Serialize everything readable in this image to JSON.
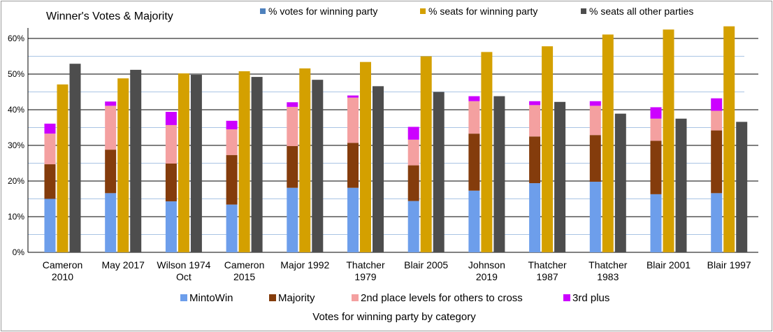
{
  "chart_data": {
    "type": "bar",
    "title": "Winner's Votes & Majority",
    "xlabel": "Votes for winning party by category",
    "ylim": [
      0,
      63
    ],
    "yticks": [
      "0%",
      "10%",
      "20%",
      "30%",
      "40%",
      "50%",
      "60%"
    ],
    "categories": [
      [
        "Cameron",
        "2010"
      ],
      [
        "May 2017"
      ],
      [
        "Wilson 1974",
        "Oct"
      ],
      [
        "Cameron",
        "2015"
      ],
      [
        "Major 1992"
      ],
      [
        "Thatcher",
        "1979"
      ],
      [
        "Blair 2005"
      ],
      [
        "Johnson",
        "2019"
      ],
      [
        "Thatcher",
        "1987"
      ],
      [
        "Thatcher",
        "1983"
      ],
      [
        "Blair 2001"
      ],
      [
        "Blair 1997"
      ]
    ],
    "stacked_series": [
      {
        "name": "MintoWin",
        "color": "#6d9eeb",
        "values": [
          15.0,
          16.6,
          14.3,
          13.4,
          18.1,
          18.1,
          14.4,
          17.3,
          19.4,
          19.8,
          16.3,
          16.6
        ]
      },
      {
        "name": "Majority",
        "color": "#843c0c",
        "values": [
          9.7,
          12.2,
          10.6,
          13.9,
          11.7,
          12.6,
          10.0,
          16.0,
          13.1,
          13.1,
          15.0,
          17.6
        ]
      },
      {
        "name": "2nd place levels for others to cross",
        "color": "#f4a0a0",
        "values": [
          8.6,
          12.3,
          10.8,
          7.2,
          11.0,
          12.7,
          7.2,
          9.1,
          8.8,
          8.2,
          6.2,
          5.5
        ]
      },
      {
        "name": "3rd plus",
        "color": "#cc00ff",
        "values": [
          2.8,
          1.2,
          3.7,
          2.4,
          1.3,
          0.6,
          3.6,
          1.4,
          1.1,
          1.3,
          3.2,
          3.5
        ]
      }
    ],
    "series": [
      {
        "name": "% votes for winning party",
        "color": "#4e81bd",
        "values": [
          36.1,
          42.3,
          39.4,
          36.9,
          41.9,
          43.9,
          35.2,
          43.6,
          42.3,
          42.4,
          40.7,
          43.2
        ]
      },
      {
        "name": "% seats for winning party",
        "color": "#d4a000",
        "values": [
          47.1,
          48.8,
          50.2,
          50.8,
          51.6,
          53.4,
          55.0,
          56.2,
          57.8,
          61.1,
          62.5,
          63.4
        ]
      },
      {
        "name": "% seats all other parties",
        "color": "#4d4d4d",
        "values": [
          52.9,
          51.2,
          49.8,
          49.2,
          48.4,
          46.6,
          45.0,
          43.8,
          42.2,
          38.9,
          37.5,
          36.6
        ]
      }
    ]
  }
}
